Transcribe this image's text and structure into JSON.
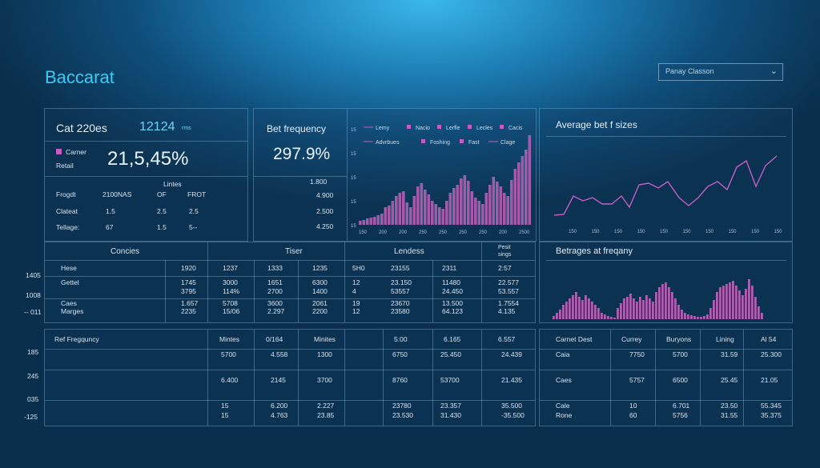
{
  "app": {
    "title": "Baccarat"
  },
  "dropdown": {
    "value": "Panay Classon"
  },
  "stats": {
    "title": "Cat 220es",
    "title_value": "12124",
    "title_unit": "rms",
    "legend_label": "Carner",
    "retail_label": "Retail",
    "big_value": "21,5,45%",
    "col_header_top": "Lintes",
    "headers": [
      "Frogdt",
      "2100NAS",
      "OF",
      "FROT"
    ],
    "rows": [
      [
        "Clateat",
        "1.5",
        "2.5",
        "2.5"
      ],
      [
        "Tellage:",
        "67",
        "1.5",
        "5--"
      ]
    ]
  },
  "bet_frequency": {
    "title": "Bet frequency",
    "value": "297.9%",
    "ticks": [
      "1.800",
      "4.900",
      "2.500",
      "4.250"
    ]
  },
  "chart_main": {
    "legend": [
      {
        "label": "Lemy",
        "type": "line"
      },
      {
        "label": "Nacio",
        "type": "square"
      },
      {
        "label": "Lerfle",
        "type": "square"
      },
      {
        "label": "Lecles",
        "type": "square"
      },
      {
        "label": "Cacis",
        "type": "square"
      },
      {
        "label": "Advrbues",
        "type": "line"
      },
      {
        "label": "Foshing",
        "type": "square"
      },
      {
        "label": "Fast",
        "type": "square"
      },
      {
        "label": "Clage",
        "type": "line"
      }
    ],
    "x_labels": [
      "150",
      "200",
      "200",
      "250",
      "250",
      "250",
      "250",
      "200",
      "2500"
    ],
    "y_labels": [
      "15",
      "15",
      "15",
      "15",
      "15"
    ]
  },
  "avg_bet": {
    "title": "Average bet f sizes",
    "x_labels": [
      "150",
      "150",
      "150",
      "150",
      "150",
      "150",
      "150",
      "150",
      "150",
      "150"
    ]
  },
  "betrages": {
    "title": "Betrages at freqany"
  },
  "middle_table": {
    "left_labels": [
      "1405",
      "1008",
      "-- 011"
    ],
    "groups": [
      "Concies",
      "Tiser",
      "Lendess",
      "Pesit sings"
    ],
    "header_row": [
      "Hese",
      "1920",
      "1237",
      "1333",
      "1235",
      "5H0",
      "23155",
      "2311",
      "2:57"
    ],
    "rows": [
      [
        "Gettel",
        "1745",
        "3000",
        "1651",
        "6300",
        "12",
        "23.150",
        "11480",
        "22.577"
      ],
      [
        "",
        "3795",
        "114%",
        "2700",
        "1400",
        "4",
        "53557",
        "24.450",
        "53.557"
      ],
      [
        "Caes",
        "1.657",
        "5708",
        "3600",
        "2061",
        "19",
        "23670",
        "13.500",
        "1.7554"
      ],
      [
        "Marges",
        "2235",
        "15/06",
        "2.297",
        "2200",
        "12",
        "23580",
        "64.123",
        "4.135"
      ]
    ]
  },
  "bottom_left_table": {
    "left_labels": [
      "185",
      "245",
      "035",
      "-125"
    ],
    "title": "Ref Fregquncy",
    "headers": [
      "Mintes",
      "0/164",
      "Minites",
      "",
      "5:00",
      "6.165",
      "6.557"
    ],
    "rows": [
      [
        "",
        "5700",
        "4.558",
        "1300",
        "",
        "6750",
        "25.450",
        "24.439"
      ],
      [
        "",
        "6.400",
        "2145",
        "3700",
        "",
        "8760",
        "53700",
        "21.435"
      ],
      [
        "",
        "15",
        "6.200",
        "2.227",
        "",
        "23780",
        "23.357",
        "35.500"
      ],
      [
        "",
        "15",
        "4.763",
        "23.85",
        "",
        "23.530",
        "31.430",
        "-35.500"
      ]
    ]
  },
  "bottom_right_table": {
    "headers": [
      "Carnet Dest",
      "Currey",
      "Buryons",
      "Lining",
      "Al 54"
    ],
    "rows": [
      [
        "Caia",
        "7750",
        "5700",
        "31.59",
        "25.300"
      ],
      [
        "Caes",
        "5757",
        "6500",
        "25.45",
        "21.05"
      ],
      [
        "Cale",
        "10",
        "6.701",
        "23.50",
        "55.345"
      ],
      [
        "Rone",
        "60",
        "5756",
        "31.55",
        "35.375"
      ]
    ]
  },
  "colors": {
    "accent": "#3ecbf2",
    "bar": "#b05fb2",
    "line": "#c35fc2",
    "border": "#8fc0dc"
  }
}
